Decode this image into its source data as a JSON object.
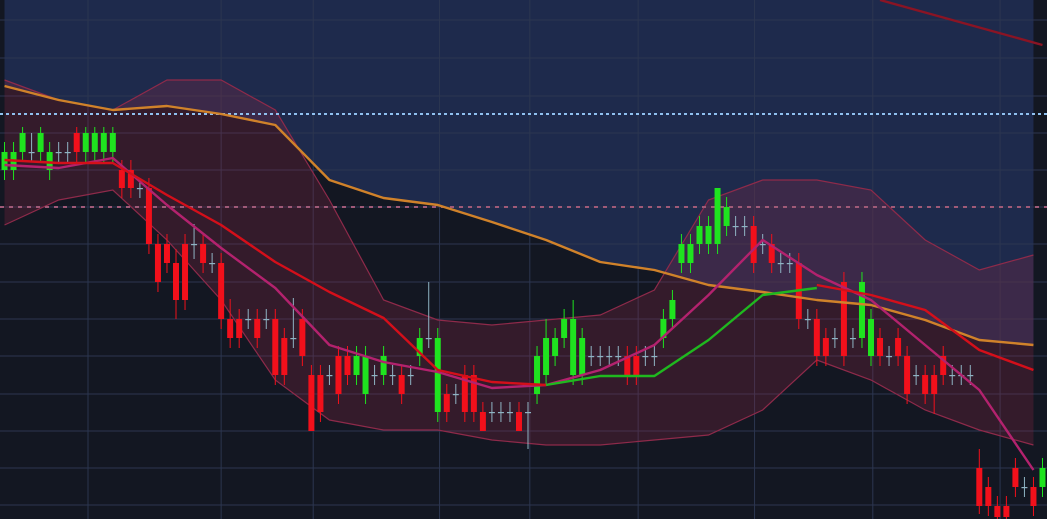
{
  "chart_data": {
    "type": "candlestick",
    "ylim": [
      0,
      519
    ],
    "xlim": [
      -0.5,
      115.5
    ],
    "grid": true,
    "yticks": [
      499,
      461,
      423,
      386,
      349,
      312,
      275,
      237,
      200,
      163,
      125,
      88,
      51,
      14
    ],
    "xticks": [
      9.25,
      24,
      34.2,
      48.2,
      58.2,
      70.2,
      83.1,
      96.2,
      110.3
    ],
    "background": {
      "base": "#131722",
      "upper": "#1e2a4c",
      "grid": "#2c3650"
    },
    "colors": {
      "up": "#1fe31f",
      "down": "#f2101b",
      "doji": "#8fb4c4"
    },
    "open": [
      349,
      349,
      367,
      367,
      367,
      349,
      367,
      367,
      386,
      367,
      367,
      367,
      367,
      349,
      349,
      331,
      331,
      275,
      275,
      256,
      275,
      275,
      275,
      256,
      256,
      200,
      200,
      200,
      200,
      200,
      200,
      181,
      181,
      200,
      144,
      144,
      144,
      163,
      163,
      144,
      125,
      144,
      144,
      144,
      144,
      144,
      163,
      181,
      107,
      125,
      125,
      144,
      144,
      107,
      107,
      107,
      107,
      107,
      107,
      125,
      144,
      163,
      181,
      144,
      144,
      163,
      163,
      163,
      163,
      163,
      163,
      163,
      163,
      181,
      200,
      256,
      256,
      275,
      275,
      275,
      293,
      293,
      293,
      293,
      275,
      275,
      256,
      256,
      256,
      200,
      200,
      181,
      181,
      237,
      181,
      181,
      163,
      181,
      163,
      181,
      163,
      144,
      144,
      144,
      163,
      144,
      144,
      144,
      51,
      32,
      13,
      13,
      51,
      32,
      32,
      32
    ],
    "high": [
      377,
      377,
      392,
      386,
      392,
      377,
      377,
      377,
      392,
      392,
      392,
      392,
      392,
      359,
      359,
      341,
      341,
      285,
      285,
      270,
      285,
      295,
      285,
      266,
      266,
      220,
      210,
      210,
      210,
      210,
      210,
      191,
      221,
      210,
      154,
      154,
      154,
      173,
      173,
      173,
      173,
      154,
      173,
      154,
      154,
      154,
      191,
      237,
      191,
      135,
      135,
      154,
      154,
      117,
      117,
      117,
      117,
      117,
      117,
      173,
      200,
      191,
      210,
      219,
      191,
      173,
      173,
      173,
      173,
      173,
      173,
      173,
      173,
      210,
      229,
      285,
      285,
      303,
      303,
      331,
      322,
      303,
      303,
      303,
      285,
      285,
      266,
      266,
      266,
      210,
      210,
      191,
      191,
      247,
      191,
      247,
      210,
      191,
      173,
      191,
      173,
      154,
      154,
      154,
      173,
      154,
      154,
      154,
      70,
      42,
      23,
      23,
      61,
      42,
      42,
      61
    ],
    "low": [
      339,
      339,
      357,
      357,
      357,
      339,
      357,
      357,
      357,
      357,
      357,
      357,
      357,
      321,
      321,
      321,
      265,
      227,
      246,
      200,
      209,
      260,
      246,
      246,
      190,
      171,
      171,
      190,
      171,
      190,
      134,
      134,
      171,
      153,
      88,
      97,
      134,
      115,
      134,
      134,
      115,
      134,
      134,
      134,
      115,
      134,
      153,
      171,
      97,
      97,
      115,
      97,
      97,
      88,
      97,
      97,
      97,
      88,
      70,
      115,
      134,
      153,
      171,
      134,
      134,
      153,
      153,
      153,
      153,
      134,
      134,
      153,
      153,
      171,
      190,
      246,
      246,
      265,
      265,
      265,
      283,
      283,
      283,
      246,
      265,
      246,
      246,
      246,
      190,
      190,
      153,
      153,
      171,
      153,
      171,
      171,
      153,
      153,
      153,
      153,
      115,
      134,
      115,
      105,
      134,
      134,
      134,
      134,
      5,
      3,
      0,
      0,
      22,
      22,
      3,
      22
    ],
    "close": [
      367,
      367,
      386,
      367,
      386,
      367,
      367,
      367,
      367,
      386,
      386,
      386,
      386,
      331,
      331,
      331,
      275,
      237,
      256,
      219,
      219,
      275,
      256,
      256,
      200,
      181,
      181,
      200,
      181,
      200,
      144,
      144,
      181,
      163,
      88,
      107,
      144,
      125,
      144,
      163,
      163,
      144,
      163,
      144,
      125,
      144,
      181,
      181,
      181,
      107,
      125,
      107,
      107,
      88,
      107,
      107,
      107,
      88,
      107,
      163,
      181,
      181,
      200,
      200,
      181,
      163,
      163,
      163,
      163,
      144,
      144,
      163,
      163,
      200,
      219,
      275,
      275,
      293,
      293,
      331,
      312,
      293,
      293,
      256,
      275,
      256,
      256,
      256,
      200,
      200,
      163,
      163,
      181,
      163,
      181,
      237,
      200,
      163,
      163,
      163,
      125,
      144,
      125,
      125,
      144,
      144,
      144,
      144,
      13,
      13,
      2,
      2,
      32,
      32,
      13,
      51
    ],
    "bands": {
      "color": "#8e2a4a",
      "fill": "rgba(140,40,70,0.28)",
      "x": [
        0,
        6,
        12,
        18,
        24,
        30,
        36,
        42,
        48,
        54,
        60,
        66,
        72,
        78,
        84,
        90,
        96,
        102,
        108,
        114
      ],
      "upper": [
        439,
        419,
        409,
        439,
        439,
        409,
        319,
        219,
        199,
        194,
        199,
        204,
        229,
        319,
        339,
        339,
        329,
        279,
        249,
        264
      ],
      "lower": [
        294,
        319,
        329,
        279,
        219,
        139,
        99,
        89,
        89,
        79,
        74,
        74,
        79,
        84,
        109,
        159,
        139,
        109,
        89,
        74
      ]
    },
    "lines": [
      {
        "color": "#d0822a",
        "fill_above": true,
        "x": [
          0,
          6,
          12,
          18,
          24,
          30,
          36,
          42,
          48,
          54,
          60,
          66,
          72,
          78,
          84,
          90,
          96,
          102,
          108,
          114
        ],
        "values": [
          433,
          419,
          409,
          413,
          405,
          394,
          339,
          321,
          314,
          297,
          279,
          257,
          249,
          234,
          227,
          219,
          214,
          199,
          179,
          174
        ]
      },
      {
        "color": "#b3226e",
        "x": [
          0,
          6,
          12,
          18,
          24,
          30,
          36,
          42,
          48,
          54,
          60,
          66,
          72,
          78,
          84,
          90,
          96,
          102,
          108,
          114
        ],
        "values": [
          354,
          351,
          361,
          314,
          271,
          231,
          174,
          157,
          147,
          131,
          134,
          149,
          174,
          224,
          279,
          244,
          219,
          174,
          129,
          49
        ]
      },
      {
        "color": "#d40f1a",
        "x": [
          0,
          6,
          12,
          18,
          24,
          30,
          36,
          42,
          48,
          54,
          60,
          66,
          72,
          78,
          84,
          90,
          96,
          102,
          108,
          114
        ],
        "values": [
          359,
          356,
          356,
          324,
          294,
          257,
          227,
          201,
          149,
          137,
          134,
          null,
          null,
          null,
          null,
          234,
          224,
          209,
          169,
          149
        ]
      },
      {
        "color": "#1fb81f",
        "x": [
          0,
          6,
          12,
          18,
          24,
          30,
          36,
          42,
          48,
          54,
          60,
          66,
          72,
          78,
          84,
          90,
          96,
          102,
          108,
          114
        ],
        "values": [
          null,
          null,
          null,
          null,
          null,
          null,
          null,
          null,
          null,
          null,
          134,
          143,
          143,
          179,
          224,
          231,
          null,
          null,
          null,
          null
        ]
      },
      {
        "color": "#8a1424",
        "x": [
          97,
          103,
          109,
          115
        ],
        "values": [
          519,
          504,
          489,
          474
        ]
      }
    ],
    "levels": [
      {
        "value": 405,
        "color": "#8fc0ef",
        "dash": "3 3"
      },
      {
        "value": 312,
        "color": "#a05a78",
        "dash": "4 5"
      }
    ]
  }
}
